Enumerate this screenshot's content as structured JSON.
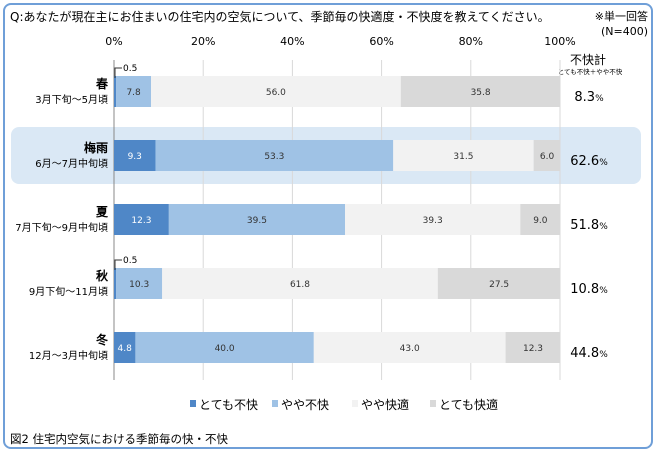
{
  "chart_data": {
    "type": "bar",
    "stacked": "100%",
    "orientation": "horizontal",
    "title": "Q:あなたが現在主にお住まいの住宅内の空気について、季節毎の快適度・不快度を教えてください。",
    "note": "※単一回答",
    "sample": "(N=400)",
    "caption": "図2  住宅内空気における季節毎の快・不快",
    "xlim": [
      0,
      100
    ],
    "x_ticks": [
      "0%",
      "20%",
      "40%",
      "60%",
      "80%",
      "100%"
    ],
    "grid": true,
    "legend_position": "bottom",
    "categories": [
      {
        "season": "春",
        "period": "3月下旬～5月頃"
      },
      {
        "season": "梅雨",
        "period": "6月～7月中旬頃"
      },
      {
        "season": "夏",
        "period": "7月下旬～9月中旬頃"
      },
      {
        "season": "秋",
        "period": "9月下旬～11月頃"
      },
      {
        "season": "冬",
        "period": "12月～3月中旬頃"
      }
    ],
    "highlighted_category": "梅雨",
    "series": [
      {
        "name": "とても不快",
        "color": "#4f87c7",
        "values": [
          0.5,
          9.3,
          12.3,
          0.5,
          4.8
        ]
      },
      {
        "name": "やや不快",
        "color": "#9fc2e5",
        "values": [
          7.8,
          53.3,
          39.5,
          10.3,
          40.0
        ]
      },
      {
        "name": "やや快適",
        "color": "#f2f2f2",
        "values": [
          56.0,
          31.5,
          39.3,
          61.8,
          43.0
        ]
      },
      {
        "name": "とても快適",
        "color": "#d9d9d9",
        "values": [
          35.8,
          6.0,
          9.0,
          27.5,
          12.3
        ]
      }
    ],
    "total_header": "不快計",
    "total_subheader": "とても不快＋やや不快",
    "totals": [
      "8.3",
      "62.6",
      "51.8",
      "10.8",
      "44.8"
    ],
    "total_unit": "%"
  }
}
